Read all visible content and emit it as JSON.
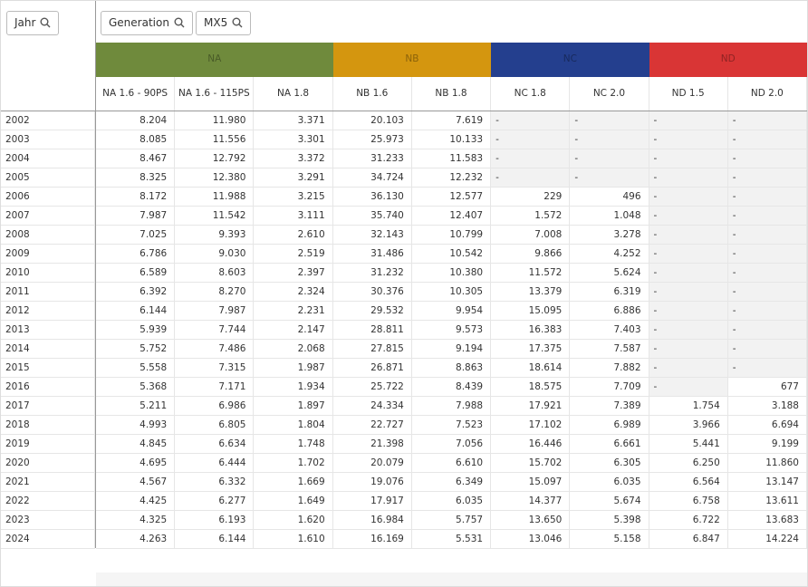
{
  "filters": [
    "Jahr",
    "Generation",
    "MX5"
  ],
  "groups": [
    {
      "label": "NA",
      "span": 3,
      "color": "#6f8a3c"
    },
    {
      "label": "NB",
      "span": 2,
      "color": "#d4960f"
    },
    {
      "label": "NC",
      "span": 2,
      "color": "#243f8e"
    },
    {
      "label": "ND",
      "span": 2,
      "color": "#d93535"
    }
  ],
  "columns": [
    "NA 1.6 - 90PS",
    "NA 1.6 - 115PS",
    "NA 1.8",
    "NB 1.6",
    "NB 1.8",
    "NC 1.8",
    "NC 2.0",
    "ND 1.5",
    "ND 2.0"
  ],
  "rows": [
    {
      "year": "2002",
      "cells": [
        "8.204",
        "11.980",
        "3.371",
        "20.103",
        "7.619",
        "-",
        "-",
        "-",
        "-"
      ]
    },
    {
      "year": "2003",
      "cells": [
        "8.085",
        "11.556",
        "3.301",
        "25.973",
        "10.133",
        "-",
        "-",
        "-",
        "-"
      ]
    },
    {
      "year": "2004",
      "cells": [
        "8.467",
        "12.792",
        "3.372",
        "31.233",
        "11.583",
        "-",
        "-",
        "-",
        "-"
      ]
    },
    {
      "year": "2005",
      "cells": [
        "8.325",
        "12.380",
        "3.291",
        "34.724",
        "12.232",
        "-",
        "-",
        "-",
        "-"
      ]
    },
    {
      "year": "2006",
      "cells": [
        "8.172",
        "11.988",
        "3.215",
        "36.130",
        "12.577",
        "229",
        "496",
        "-",
        "-"
      ]
    },
    {
      "year": "2007",
      "cells": [
        "7.987",
        "11.542",
        "3.111",
        "35.740",
        "12.407",
        "1.572",
        "1.048",
        "-",
        "-"
      ]
    },
    {
      "year": "2008",
      "cells": [
        "7.025",
        "9.393",
        "2.610",
        "32.143",
        "10.799",
        "7.008",
        "3.278",
        "-",
        "-"
      ]
    },
    {
      "year": "2009",
      "cells": [
        "6.786",
        "9.030",
        "2.519",
        "31.486",
        "10.542",
        "9.866",
        "4.252",
        "-",
        "-"
      ]
    },
    {
      "year": "2010",
      "cells": [
        "6.589",
        "8.603",
        "2.397",
        "31.232",
        "10.380",
        "11.572",
        "5.624",
        "-",
        "-"
      ]
    },
    {
      "year": "2011",
      "cells": [
        "6.392",
        "8.270",
        "2.324",
        "30.376",
        "10.305",
        "13.379",
        "6.319",
        "-",
        "-"
      ]
    },
    {
      "year": "2012",
      "cells": [
        "6.144",
        "7.987",
        "2.231",
        "29.532",
        "9.954",
        "15.095",
        "6.886",
        "-",
        "-"
      ]
    },
    {
      "year": "2013",
      "cells": [
        "5.939",
        "7.744",
        "2.147",
        "28.811",
        "9.573",
        "16.383",
        "7.403",
        "-",
        "-"
      ]
    },
    {
      "year": "2014",
      "cells": [
        "5.752",
        "7.486",
        "2.068",
        "27.815",
        "9.194",
        "17.375",
        "7.587",
        "-",
        "-"
      ]
    },
    {
      "year": "2015",
      "cells": [
        "5.558",
        "7.315",
        "1.987",
        "26.871",
        "8.863",
        "18.614",
        "7.882",
        "-",
        "-"
      ]
    },
    {
      "year": "2016",
      "cells": [
        "5.368",
        "7.171",
        "1.934",
        "25.722",
        "8.439",
        "18.575",
        "7.709",
        "-",
        "677"
      ]
    },
    {
      "year": "2017",
      "cells": [
        "5.211",
        "6.986",
        "1.897",
        "24.334",
        "7.988",
        "17.921",
        "7.389",
        "1.754",
        "3.188"
      ]
    },
    {
      "year": "2018",
      "cells": [
        "4.993",
        "6.805",
        "1.804",
        "22.727",
        "7.523",
        "17.102",
        "6.989",
        "3.966",
        "6.694"
      ]
    },
    {
      "year": "2019",
      "cells": [
        "4.845",
        "6.634",
        "1.748",
        "21.398",
        "7.056",
        "16.446",
        "6.661",
        "5.441",
        "9.199"
      ]
    },
    {
      "year": "2020",
      "cells": [
        "4.695",
        "6.444",
        "1.702",
        "20.079",
        "6.610",
        "15.702",
        "6.305",
        "6.250",
        "11.860"
      ]
    },
    {
      "year": "2021",
      "cells": [
        "4.567",
        "6.332",
        "1.669",
        "19.076",
        "6.349",
        "15.097",
        "6.035",
        "6.564",
        "13.147"
      ]
    },
    {
      "year": "2022",
      "cells": [
        "4.425",
        "6.277",
        "1.649",
        "17.917",
        "6.035",
        "14.377",
        "5.674",
        "6.758",
        "13.611"
      ]
    },
    {
      "year": "2023",
      "cells": [
        "4.325",
        "6.193",
        "1.620",
        "16.984",
        "5.757",
        "13.650",
        "5.398",
        "6.722",
        "13.683"
      ]
    },
    {
      "year": "2024",
      "cells": [
        "4.263",
        "6.144",
        "1.610",
        "16.169",
        "5.531",
        "13.046",
        "5.158",
        "6.847",
        "14.224"
      ]
    }
  ]
}
